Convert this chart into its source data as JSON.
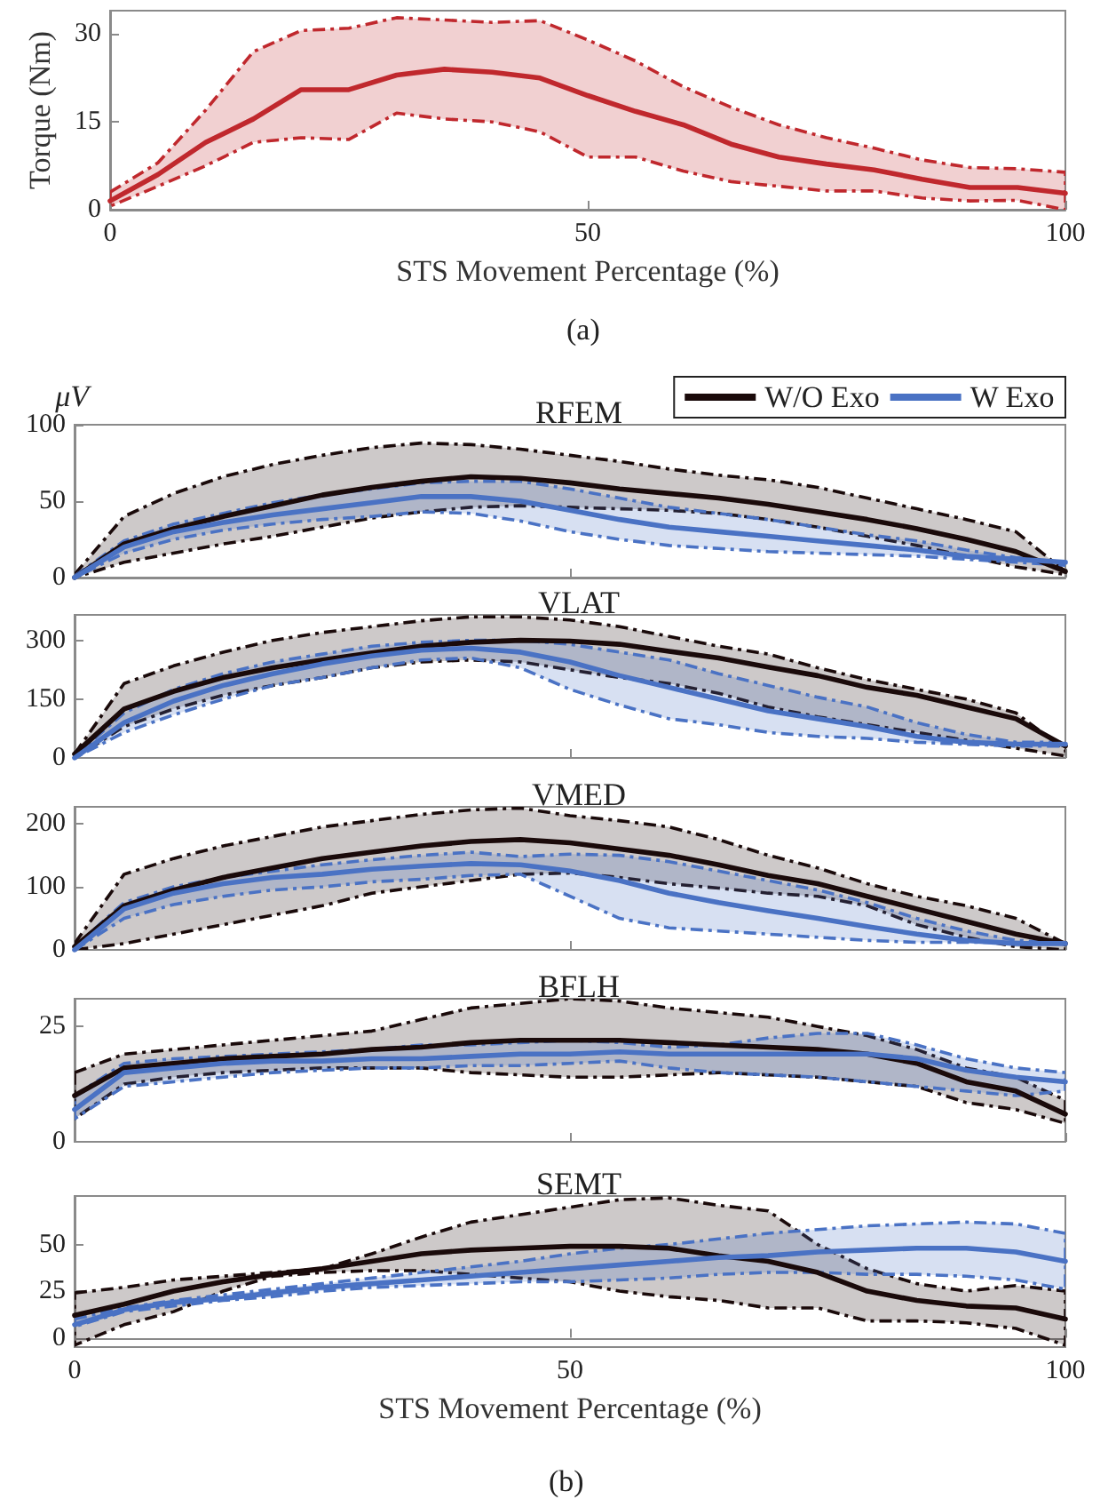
{
  "chart_data": [
    {
      "type": "line",
      "xlabel": "STS Movement Percentage (%)",
      "ylabel": "Torque (Nm)",
      "annotations": [
        "(a)"
      ],
      "x": [
        0,
        5,
        10,
        15,
        20,
        25,
        30,
        35,
        40,
        45,
        50,
        55,
        60,
        65,
        70,
        75,
        80,
        85,
        90,
        95,
        100
      ],
      "xlim": [
        0,
        100
      ],
      "xticks": [
        0,
        50,
        100
      ],
      "ylim": [
        0,
        34
      ],
      "yticks": [
        0,
        15,
        30
      ],
      "series": [
        {
          "color": "#c0282d",
          "values": [
            1.5,
            6,
            11.5,
            15.5,
            20.5,
            20.5,
            23,
            24,
            23.5,
            22.5,
            19.5,
            16.8,
            14.5,
            11.2,
            9,
            7.8,
            6.8,
            5.2,
            3.8,
            3.8,
            2.8
          ],
          "lower": [
            0.6,
            4,
            7.5,
            11.5,
            12.3,
            12,
            16.5,
            15.5,
            15,
            13.3,
            9,
            9,
            6.6,
            4.8,
            4,
            3.2,
            3.2,
            2,
            1.5,
            1.6,
            0
          ],
          "upper": [
            3,
            8,
            17,
            27,
            30.6,
            31,
            32.8,
            32.4,
            32,
            32.3,
            29,
            25.4,
            21,
            17.5,
            14.5,
            12.3,
            10.5,
            8.5,
            7.2,
            7,
            6.4
          ]
        }
      ]
    },
    {
      "type": "line",
      "title": "RFEM",
      "ylabel": "μV",
      "legend": "top right",
      "tick_labels": "y",
      "x": [
        0,
        5,
        10,
        15,
        20,
        25,
        30,
        35,
        40,
        45,
        50,
        55,
        60,
        65,
        70,
        75,
        80,
        85,
        90,
        95,
        100
      ],
      "xlim": [
        0,
        100
      ],
      "xticks": [
        0,
        50,
        100
      ],
      "ylim": [
        0,
        100
      ],
      "yticks": [
        0,
        50,
        100
      ],
      "series": [
        {
          "name": "W/O Exo",
          "color": "#1a0a0a",
          "values": [
            0,
            22,
            32,
            40,
            47,
            54,
            59,
            63,
            66,
            65,
            62,
            58,
            55,
            52,
            48,
            43,
            38,
            32,
            25,
            17,
            4
          ],
          "lower": [
            0,
            10,
            16,
            22,
            27,
            33,
            39,
            43,
            46,
            47,
            46,
            45,
            44,
            42,
            38,
            33,
            27,
            21,
            14,
            7,
            2
          ],
          "upper": [
            2,
            40,
            55,
            66,
            74,
            80,
            85,
            88,
            87,
            84,
            80,
            76,
            71,
            67,
            64,
            59,
            52,
            45,
            38,
            30,
            4
          ]
        },
        {
          "name": "W Exo",
          "color": "#4a72c4",
          "values": [
            0,
            20,
            30,
            36,
            41,
            45,
            49,
            53,
            53,
            50,
            44,
            38,
            33,
            30,
            27,
            24,
            21,
            18,
            14,
            12,
            10
          ],
          "lower": [
            0,
            16,
            25,
            31,
            35,
            38,
            40,
            43,
            42,
            37,
            30,
            25,
            21,
            19,
            17,
            16,
            15,
            14,
            12,
            10,
            8
          ],
          "upper": [
            1,
            24,
            35,
            42,
            49,
            54,
            58,
            62,
            63,
            63,
            58,
            52,
            46,
            42,
            38,
            33,
            28,
            24,
            18,
            13,
            10
          ]
        }
      ]
    },
    {
      "type": "line",
      "title": "VLAT",
      "tick_labels": "y",
      "x": [
        0,
        5,
        10,
        15,
        20,
        25,
        30,
        35,
        40,
        45,
        50,
        55,
        60,
        65,
        70,
        75,
        80,
        85,
        90,
        95,
        100
      ],
      "xlim": [
        0,
        100
      ],
      "xticks": [
        0,
        50,
        100
      ],
      "ylim": [
        0,
        365
      ],
      "yticks": [
        0,
        150,
        300
      ],
      "series": [
        {
          "color": "#1a0a0a",
          "values": [
            10,
            125,
            170,
            205,
            230,
            250,
            268,
            285,
            295,
            300,
            298,
            290,
            272,
            255,
            232,
            210,
            180,
            160,
            130,
            100,
            30
          ],
          "lower": [
            0,
            80,
            125,
            160,
            185,
            205,
            230,
            245,
            250,
            245,
            225,
            205,
            190,
            165,
            130,
            105,
            85,
            65,
            45,
            25,
            5
          ],
          "upper": [
            10,
            190,
            235,
            270,
            300,
            320,
            335,
            350,
            360,
            360,
            352,
            335,
            310,
            285,
            265,
            230,
            200,
            175,
            150,
            115,
            20
          ]
        },
        {
          "color": "#4a72c4",
          "values": [
            0,
            90,
            145,
            185,
            215,
            240,
            260,
            275,
            280,
            270,
            245,
            210,
            180,
            150,
            120,
            100,
            80,
            55,
            40,
            35,
            35
          ],
          "lower": [
            0,
            65,
            110,
            150,
            185,
            205,
            230,
            250,
            255,
            230,
            175,
            135,
            100,
            85,
            65,
            55,
            50,
            40,
            35,
            30,
            30
          ],
          "upper": [
            5,
            115,
            175,
            215,
            245,
            265,
            285,
            295,
            300,
            300,
            290,
            270,
            250,
            215,
            185,
            155,
            130,
            90,
            60,
            40,
            40
          ]
        }
      ]
    },
    {
      "type": "line",
      "title": "VMED",
      "tick_labels": "y",
      "x": [
        0,
        5,
        10,
        15,
        20,
        25,
        30,
        35,
        40,
        45,
        50,
        55,
        60,
        65,
        70,
        75,
        80,
        85,
        90,
        95,
        100
      ],
      "xlim": [
        0,
        100
      ],
      "xticks": [
        0,
        50,
        100
      ],
      "ylim": [
        0,
        227
      ],
      "yticks": [
        0,
        100,
        200
      ],
      "series": [
        {
          "color": "#1a0a0a",
          "values": [
            5,
            70,
            95,
            115,
            130,
            145,
            155,
            165,
            172,
            175,
            170,
            160,
            150,
            135,
            118,
            105,
            85,
            65,
            45,
            25,
            10
          ],
          "lower": [
            0,
            10,
            25,
            40,
            55,
            70,
            90,
            100,
            110,
            120,
            122,
            115,
            105,
            98,
            90,
            85,
            70,
            40,
            20,
            5,
            0
          ],
          "upper": [
            10,
            120,
            145,
            165,
            180,
            195,
            205,
            215,
            222,
            225,
            213,
            205,
            195,
            175,
            150,
            130,
            105,
            85,
            70,
            50,
            10
          ]
        },
        {
          "color": "#4a72c4",
          "values": [
            0,
            65,
            90,
            105,
            115,
            120,
            128,
            133,
            137,
            135,
            125,
            110,
            90,
            75,
            62,
            50,
            37,
            25,
            15,
            10,
            10
          ],
          "lower": [
            0,
            50,
            72,
            85,
            95,
            100,
            108,
            112,
            118,
            120,
            85,
            50,
            35,
            30,
            25,
            20,
            15,
            12,
            12,
            12,
            10
          ],
          "upper": [
            5,
            75,
            100,
            115,
            125,
            135,
            143,
            150,
            155,
            148,
            152,
            150,
            140,
            125,
            110,
            95,
            75,
            50,
            30,
            15,
            10
          ]
        }
      ]
    },
    {
      "type": "line",
      "title": "BFLH",
      "tick_labels": "y",
      "x": [
        0,
        5,
        10,
        15,
        20,
        25,
        30,
        35,
        40,
        45,
        50,
        55,
        60,
        65,
        70,
        75,
        80,
        85,
        90,
        95,
        100
      ],
      "xlim": [
        0,
        100
      ],
      "xticks": [
        0,
        50,
        100
      ],
      "ylim": [
        0,
        31
      ],
      "yticks": [
        0,
        25
      ],
      "series": [
        {
          "color": "#1a0a0a",
          "values": [
            10,
            16,
            17,
            18,
            18.5,
            19,
            20,
            20.5,
            21.5,
            22,
            22,
            22,
            21.5,
            21,
            20.5,
            20,
            19,
            17,
            13,
            11,
            6
          ],
          "lower": [
            5,
            12.5,
            14,
            15,
            15.5,
            16,
            16,
            16,
            15,
            14.5,
            14,
            14,
            14.5,
            15,
            14.5,
            14,
            13,
            12,
            8.5,
            7,
            4
          ],
          "upper": [
            15,
            19,
            20,
            21,
            22,
            23,
            24,
            26.5,
            29,
            30,
            31,
            30.5,
            29,
            28,
            27,
            25,
            23,
            20,
            16,
            14,
            9
          ]
        },
        {
          "color": "#4a72c4",
          "values": [
            7,
            15,
            16,
            17,
            17.5,
            17.5,
            18,
            18,
            18.5,
            19,
            19,
            19.5,
            19,
            19,
            19,
            19,
            19,
            18,
            15.5,
            14,
            13
          ],
          "lower": [
            5,
            12,
            13,
            14,
            15,
            15.5,
            16,
            16,
            16.5,
            16.5,
            17,
            17.5,
            16,
            15,
            14.5,
            14,
            13,
            12,
            11,
            10,
            11
          ],
          "upper": [
            10,
            17,
            18,
            18.5,
            19,
            19.5,
            20,
            21,
            21,
            21.5,
            22,
            21.5,
            20.5,
            21,
            22.5,
            23.5,
            23.5,
            21,
            18,
            16,
            15
          ]
        }
      ]
    },
    {
      "type": "line",
      "title": "SEMT",
      "xlabel": "STS Movement Percentage (%)",
      "annotations": [
        "(b)"
      ],
      "x": [
        0,
        5,
        10,
        15,
        20,
        25,
        30,
        35,
        40,
        45,
        50,
        55,
        60,
        65,
        70,
        75,
        80,
        85,
        90,
        95,
        100
      ],
      "xlim": [
        0,
        100
      ],
      "xticks": [
        0,
        50,
        100
      ],
      "ylim": [
        -5,
        76
      ],
      "yticks": [
        0,
        25,
        50
      ],
      "series": [
        {
          "color": "#1a0a0a",
          "values": [
            12,
            18,
            25,
            30,
            34,
            37,
            41,
            45,
            47,
            48,
            49,
            49,
            48,
            44,
            41,
            35,
            25,
            20,
            17,
            16,
            10
          ],
          "lower": [
            -4,
            7,
            14,
            25,
            33,
            35,
            36,
            36,
            34,
            32,
            30,
            25,
            22,
            20,
            16,
            16,
            9,
            9,
            8,
            5,
            -4
          ],
          "upper": [
            24,
            27,
            31,
            33,
            35,
            37,
            45,
            54,
            62,
            66,
            70,
            74,
            75,
            71,
            68,
            50,
            37,
            29,
            25,
            28,
            25
          ]
        },
        {
          "color": "#4a72c4",
          "values": [
            7,
            15,
            19,
            21,
            24,
            27,
            29,
            31,
            33,
            35,
            37,
            39,
            41,
            43,
            44,
            46,
            47,
            48,
            48,
            46,
            41
          ],
          "lower": [
            6,
            14,
            17,
            20,
            22,
            25,
            27,
            28,
            29,
            30,
            30,
            31,
            32,
            34,
            35,
            35,
            34,
            34,
            33,
            31,
            26
          ],
          "upper": [
            10,
            16,
            20,
            23,
            26,
            29,
            32,
            35,
            38,
            41,
            45,
            48,
            50,
            53,
            56,
            58,
            60,
            61,
            62,
            61,
            56
          ]
        }
      ]
    }
  ]
}
